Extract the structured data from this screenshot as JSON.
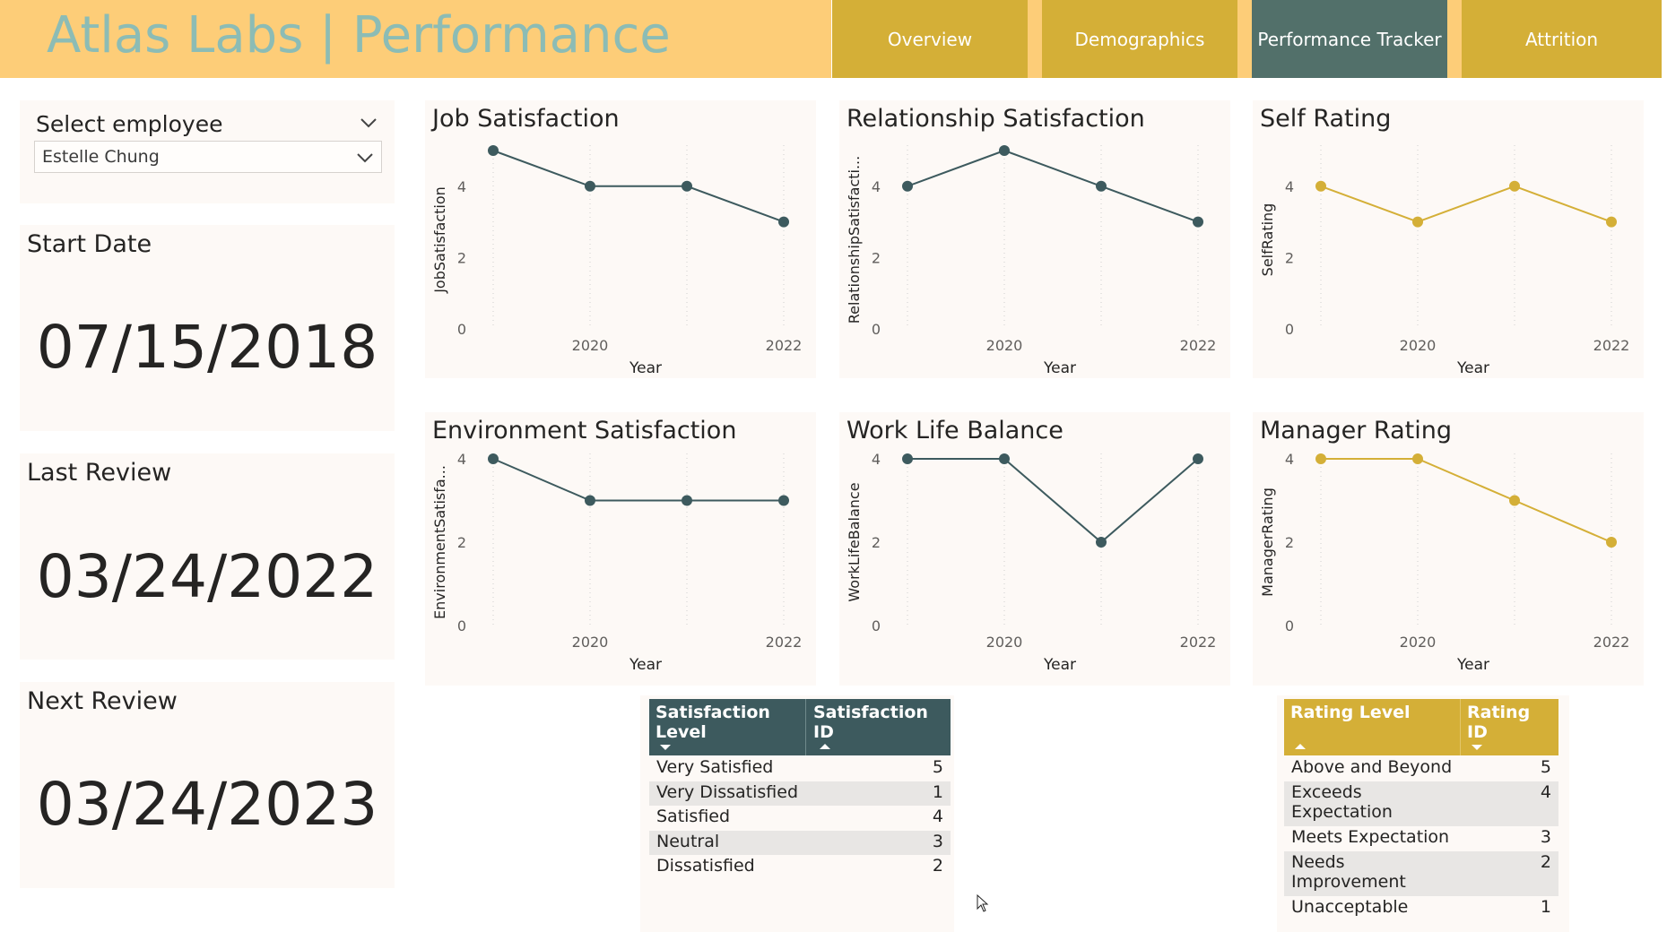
{
  "header": {
    "title": "Atlas Labs | Performance",
    "tabs": [
      {
        "label": "Overview",
        "active": false
      },
      {
        "label": "Demographics",
        "active": false
      },
      {
        "label": "Performance Tracker",
        "active": true
      },
      {
        "label": "Attrition",
        "active": false
      }
    ]
  },
  "slicer": {
    "title": "Select employee",
    "selected": "Estelle Chung"
  },
  "cards": {
    "start_date": {
      "label": "Start Date",
      "value": "07/15/2018"
    },
    "last_review": {
      "label": "Last Review",
      "value": "03/24/2022"
    },
    "next_review": {
      "label": "Next Review",
      "value": "03/24/2023"
    }
  },
  "charts_titles": {
    "job": "Job Satisfaction",
    "relationship": "Relationship Satisfaction",
    "self": "Self Rating",
    "environment": "Environment Satisfaction",
    "wlb": "Work Life Balance",
    "manager": "Manager Rating"
  },
  "chart_data": [
    {
      "id": "job",
      "type": "line",
      "title": "Job Satisfaction",
      "xlabel": "Year",
      "ylabel": "JobSatisfaction",
      "x": [
        2019,
        2020,
        2021,
        2022
      ],
      "values": [
        5,
        4,
        4,
        3
      ],
      "xticks": [
        "2020",
        "2022"
      ],
      "yticks": [
        "0",
        "2",
        "4"
      ],
      "ylim": [
        0,
        5
      ],
      "color": "#3d5a5e",
      "grid": true
    },
    {
      "id": "relationship",
      "type": "line",
      "title": "Relationship Satisfaction",
      "xlabel": "Year",
      "ylabel": "RelationshipSatisfacti...",
      "x": [
        2019,
        2020,
        2021,
        2022
      ],
      "values": [
        4,
        5,
        4,
        3
      ],
      "xticks": [
        "2020",
        "2022"
      ],
      "yticks": [
        "0",
        "2",
        "4"
      ],
      "ylim": [
        0,
        5
      ],
      "color": "#3d5a5e",
      "grid": true
    },
    {
      "id": "self",
      "type": "line",
      "title": "Self Rating",
      "xlabel": "Year",
      "ylabel": "SelfRating",
      "x": [
        2019,
        2020,
        2021,
        2022
      ],
      "values": [
        4,
        3,
        4,
        3
      ],
      "xticks": [
        "2020",
        "2022"
      ],
      "yticks": [
        "0",
        "2",
        "4"
      ],
      "ylim": [
        0,
        5
      ],
      "color": "#d4af37",
      "grid": true
    },
    {
      "id": "environment",
      "type": "line",
      "title": "Environment Satisfaction",
      "xlabel": "Year",
      "ylabel": "EnvironmentSatisfa...",
      "x": [
        2019,
        2020,
        2021,
        2022
      ],
      "values": [
        4,
        3,
        3,
        3
      ],
      "xticks": [
        "2020",
        "2022"
      ],
      "yticks": [
        "0",
        "2",
        "4"
      ],
      "ylim": [
        0,
        4
      ],
      "color": "#3d5a5e",
      "grid": true
    },
    {
      "id": "wlb",
      "type": "line",
      "title": "Work Life Balance",
      "xlabel": "Year",
      "ylabel": "WorkLifeBalance",
      "x": [
        2019,
        2020,
        2021,
        2022
      ],
      "values": [
        4,
        4,
        2,
        4
      ],
      "xticks": [
        "2020",
        "2022"
      ],
      "yticks": [
        "0",
        "2",
        "4"
      ],
      "ylim": [
        0,
        4
      ],
      "color": "#3d5a5e",
      "grid": true
    },
    {
      "id": "manager",
      "type": "line",
      "title": "Manager Rating",
      "xlabel": "Year",
      "ylabel": "ManagerRating",
      "x": [
        2019,
        2020,
        2021,
        2022
      ],
      "values": [
        4,
        4,
        3,
        2
      ],
      "xticks": [
        "2020",
        "2022"
      ],
      "yticks": [
        "0",
        "2",
        "4"
      ],
      "ylim": [
        0,
        4
      ],
      "color": "#d4af37",
      "grid": true
    },
    {
      "id": "satisfaction_table",
      "type": "table",
      "columns": [
        "Satisfaction Level",
        "Satisfaction ID"
      ],
      "rows": [
        [
          "Very Satisfied",
          "5"
        ],
        [
          "Very Dissatisfied",
          "1"
        ],
        [
          "Satisfied",
          "4"
        ],
        [
          "Neutral",
          "3"
        ],
        [
          "Dissatisfied",
          "2"
        ]
      ]
    },
    {
      "id": "rating_table",
      "type": "table",
      "columns": [
        "Rating Level",
        "Rating ID"
      ],
      "rows": [
        [
          "Above and Beyond",
          "5"
        ],
        [
          "Exceeds Expectation",
          "4"
        ],
        [
          "Meets Expectation",
          "3"
        ],
        [
          "Needs Improvement",
          "2"
        ],
        [
          "Unacceptable",
          "1"
        ]
      ]
    }
  ],
  "tables": {
    "satisfaction": {
      "col1_line1": "Satisfaction",
      "col1_line2": "Level",
      "col2_line1": "Satisfaction",
      "col2_line2": "ID",
      "rows": [
        {
          "level": "Very Satisfied",
          "id": "5"
        },
        {
          "level": "Very Dissatisfied",
          "id": "1"
        },
        {
          "level": "Satisfied",
          "id": "4"
        },
        {
          "level": "Neutral",
          "id": "3"
        },
        {
          "level": "Dissatisfied",
          "id": "2"
        }
      ]
    },
    "rating": {
      "col1_line1": "Rating Level",
      "col2_line1": "Rating",
      "col2_line2": "ID",
      "rows": [
        {
          "level1": "Above and Beyond",
          "level2": "",
          "id": "5"
        },
        {
          "level1": "Exceeds",
          "level2": "Expectation",
          "id": "4"
        },
        {
          "level1": "Meets Expectation",
          "level2": "",
          "id": "3"
        },
        {
          "level1": "Needs",
          "level2": "Improvement",
          "id": "2"
        },
        {
          "level1": "Unacceptable",
          "level2": "",
          "id": "1"
        }
      ]
    }
  },
  "colors": {
    "header_bg": "#fdcd78",
    "title_text": "#8cbcb5",
    "tab_inactive": "#d4af37",
    "tab_active": "#52706a",
    "card_bg": "#fdf9f6",
    "teal_series": "#3d5a5e",
    "gold_series": "#d4af37"
  },
  "icons": {
    "dropdown": "chevron-down-icon",
    "cursor": "mouse-pointer-icon"
  }
}
